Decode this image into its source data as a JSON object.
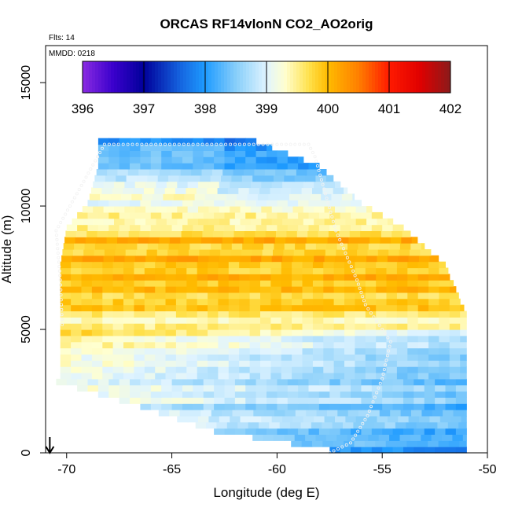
{
  "chart_data": {
    "type": "heatmap",
    "title": "ORCAS RF14vlonN CO2_AO2orig",
    "annotations": [
      "Flts: 14",
      "MMDD: 0218"
    ],
    "xlabel": "Longitude (deg E)",
    "ylabel": "Altitude (m)",
    "xlim": [
      -71,
      -50
    ],
    "ylim": [
      0,
      16500
    ],
    "xticks": [
      -70,
      -65,
      -60,
      -55,
      -50
    ],
    "yticks": [
      0,
      5000,
      10000,
      15000
    ],
    "colorbar": {
      "min": 396,
      "max": 402,
      "ticks": [
        396,
        397,
        398,
        399,
        400,
        401,
        402
      ],
      "color_stops": [
        {
          "v": 396.0,
          "c": "#8a2be2"
        },
        {
          "v": 396.5,
          "c": "#3a00cc"
        },
        {
          "v": 397.0,
          "c": "#00009a"
        },
        {
          "v": 397.6,
          "c": "#1565e0"
        },
        {
          "v": 398.0,
          "c": "#1e9bff"
        },
        {
          "v": 398.5,
          "c": "#87cefa"
        },
        {
          "v": 399.0,
          "c": "#e0f4ff"
        },
        {
          "v": 399.3,
          "c": "#ffffd0"
        },
        {
          "v": 399.7,
          "c": "#ffe04a"
        },
        {
          "v": 400.0,
          "c": "#ffbb00"
        },
        {
          "v": 400.5,
          "c": "#ff7f00"
        },
        {
          "v": 401.0,
          "c": "#ff1a00"
        },
        {
          "v": 401.5,
          "c": "#e00000"
        },
        {
          "v": 402.0,
          "c": "#8b1a1a"
        }
      ]
    },
    "cell_size": {
      "lon": 0.5,
      "alt_m": 250
    },
    "extent_by_altitude": [
      {
        "alt_m": 0,
        "lon_min": -57.5,
        "lon_max": -51
      },
      {
        "alt_m": 750,
        "lon_min": -63,
        "lon_max": -51
      },
      {
        "alt_m": 1750,
        "lon_min": -66.5,
        "lon_max": -51
      },
      {
        "alt_m": 2750,
        "lon_min": -70.5,
        "lon_max": -51
      },
      {
        "alt_m": 3000,
        "lon_min": -70.3,
        "lon_max": -51
      },
      {
        "alt_m": 5500,
        "lon_min": -70.3,
        "lon_max": -51
      },
      {
        "alt_m": 7500,
        "lon_min": -70.3,
        "lon_max": -52
      },
      {
        "alt_m": 9000,
        "lon_min": -70,
        "lon_max": -54
      },
      {
        "alt_m": 10000,
        "lon_min": -69,
        "lon_max": -56
      },
      {
        "alt_m": 11500,
        "lon_min": -68.5,
        "lon_max": -58
      },
      {
        "alt_m": 12500,
        "lon_min": -68.5,
        "lon_max": -61
      }
    ],
    "co2_profile_by_altitude": [
      {
        "alt_m": 0,
        "ppm": 398.3
      },
      {
        "alt_m": 1500,
        "ppm": 398.6
      },
      {
        "alt_m": 3000,
        "ppm": 398.8
      },
      {
        "alt_m": 4500,
        "ppm": 399.1
      },
      {
        "alt_m": 5500,
        "ppm": 399.6
      },
      {
        "alt_m": 6500,
        "ppm": 399.95
      },
      {
        "alt_m": 7500,
        "ppm": 400.05
      },
      {
        "alt_m": 8500,
        "ppm": 399.9
      },
      {
        "alt_m": 9500,
        "ppm": 399.4
      },
      {
        "alt_m": 10500,
        "ppm": 399.0
      },
      {
        "alt_m": 11500,
        "ppm": 398.5
      },
      {
        "alt_m": 12500,
        "ppm": 398.1
      }
    ],
    "flight_track": [
      {
        "lon": -57.5,
        "alt_m": 0
      },
      {
        "lon": -56.5,
        "alt_m": 400
      },
      {
        "lon": -55.7,
        "alt_m": 1500
      },
      {
        "lon": -55.0,
        "alt_m": 3000
      },
      {
        "lon": -54.6,
        "alt_m": 4500
      },
      {
        "lon": -55.8,
        "alt_m": 6000
      },
      {
        "lon": -56.2,
        "alt_m": 7000
      },
      {
        "lon": -57.2,
        "alt_m": 9000
      },
      {
        "lon": -58.2,
        "alt_m": 12000
      },
      {
        "lon": -58.5,
        "alt_m": 12500
      },
      {
        "lon": -60.0,
        "alt_m": 12500
      },
      {
        "lon": -68.2,
        "alt_m": 12500
      },
      {
        "lon": -70.5,
        "alt_m": 9000
      },
      {
        "lon": -70.3,
        "alt_m": 7000
      },
      {
        "lon": -70.2,
        "alt_m": 5000
      }
    ],
    "arrow_lon": -70.8
  }
}
